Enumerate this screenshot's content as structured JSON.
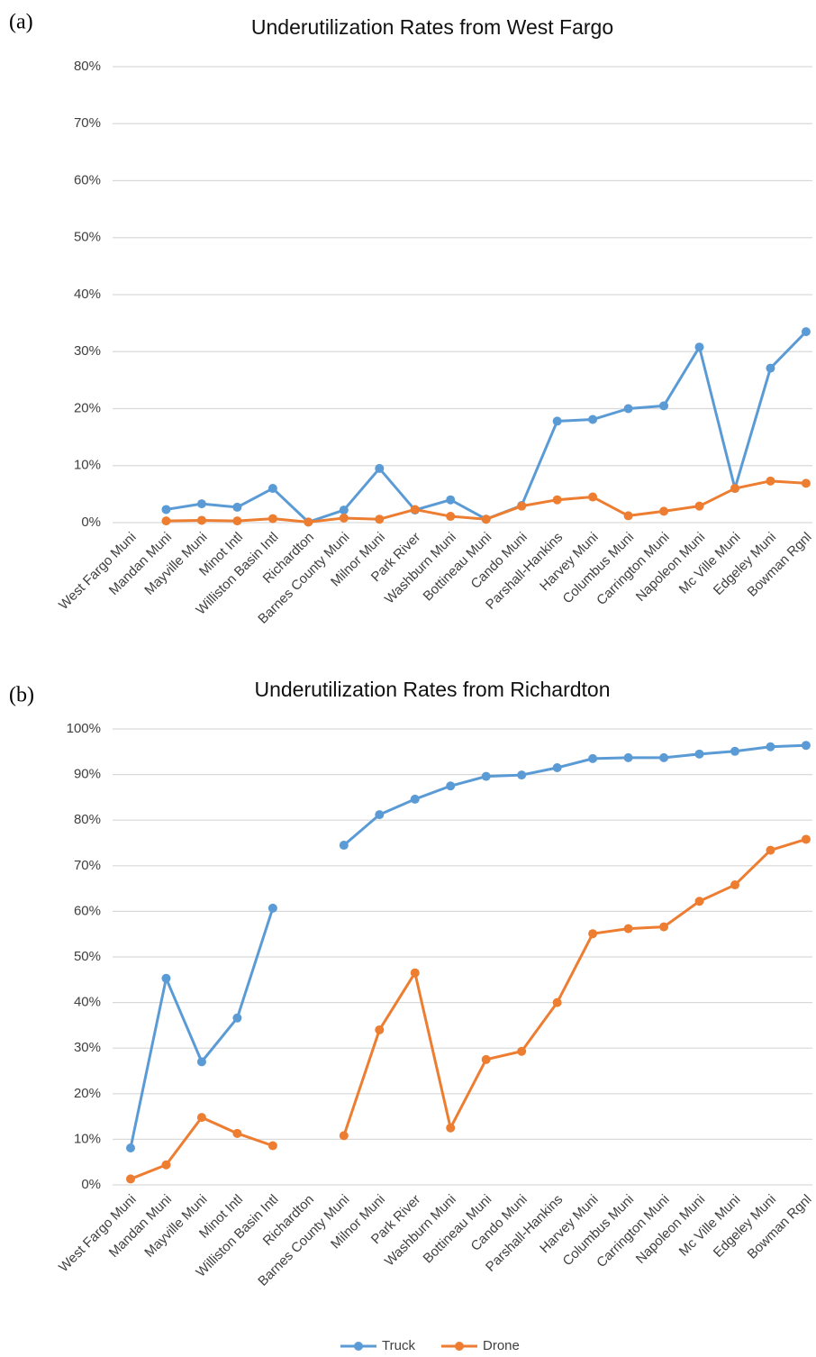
{
  "chart_data": [
    {
      "type": "line",
      "panel": "(a)",
      "title": "Underutilization Rates from West Fargo",
      "categories": [
        "West Fargo Muni",
        "Mandan Muni",
        "Mayville Muni",
        "Minot Intl",
        "Williston Basin Intl",
        "Richardton",
        "Barnes County Muni",
        "Milnor Muni",
        "Park River",
        "Washburn Muni",
        "Bottineau Muni",
        "Cando Muni",
        "Parshall-Hankins",
        "Harvey Muni",
        "Columbus Muni",
        "Carrington Muni",
        "Napoleon Muni",
        "Mc Ville Muni",
        "Edgeley Muni",
        "Bowman Rgnl"
      ],
      "series": [
        {
          "name": "Truck",
          "color": "#5b9bd5",
          "values": [
            null,
            2.3,
            3.3,
            2.7,
            6.0,
            0.1,
            2.2,
            9.5,
            2.2,
            4.0,
            0.6,
            3.0,
            17.8,
            18.1,
            20.0,
            20.5,
            30.8,
            6.0,
            27.1,
            33.5
          ]
        },
        {
          "name": "Drone",
          "color": "#ed7d31",
          "values": [
            null,
            0.3,
            0.4,
            0.3,
            0.7,
            0.1,
            0.8,
            0.6,
            2.3,
            1.1,
            0.6,
            2.9,
            4.0,
            4.5,
            1.2,
            2.0,
            2.9,
            6.0,
            7.3,
            6.9
          ]
        }
      ],
      "ylim": [
        0,
        80
      ],
      "yticks": [
        {
          "value": 0,
          "label": "0%"
        },
        {
          "value": 10,
          "label": "10%"
        },
        {
          "value": 20,
          "label": "20%"
        },
        {
          "value": 30,
          "label": "30%"
        },
        {
          "value": 40,
          "label": "40%"
        },
        {
          "value": 50,
          "label": "50%"
        },
        {
          "value": 60,
          "label": "60%"
        },
        {
          "value": 70,
          "label": "70%"
        },
        {
          "value": 80,
          "label": "80%"
        }
      ],
      "grid": true
    },
    {
      "type": "line",
      "panel": "(b)",
      "title": "Underutilization Rates from Richardton",
      "categories": [
        "West Fargo Muni",
        "Mandan Muni",
        "Mayville Muni",
        "Minot Intl",
        "Williston Basin Intl",
        "Richardton",
        "Barnes County Muni",
        "Milnor Muni",
        "Park River",
        "Washburn Muni",
        "Bottineau Muni",
        "Cando Muni",
        "Parshall-Hankins",
        "Harvey Muni",
        "Columbus Muni",
        "Carrington Muni",
        "Napoleon Muni",
        "Mc Ville Muni",
        "Edgeley Muni",
        "Bowman Rgnl"
      ],
      "series": [
        {
          "name": "Truck",
          "color": "#5b9bd5",
          "values": [
            8.1,
            45.3,
            27.0,
            36.6,
            60.7,
            null,
            74.5,
            81.2,
            84.6,
            87.5,
            89.6,
            89.9,
            91.5,
            93.5,
            93.7,
            93.7,
            94.5,
            95.1,
            96.1,
            96.4
          ]
        },
        {
          "name": "Drone",
          "color": "#ed7d31",
          "values": [
            1.3,
            4.4,
            14.8,
            11.3,
            8.6,
            null,
            10.8,
            34.0,
            46.5,
            12.5,
            27.5,
            29.3,
            40.0,
            55.1,
            56.2,
            56.6,
            62.2,
            65.8,
            73.4,
            75.8
          ]
        }
      ],
      "ylim": [
        0,
        100
      ],
      "yticks": [
        {
          "value": 0,
          "label": "0%"
        },
        {
          "value": 10,
          "label": "10%"
        },
        {
          "value": 20,
          "label": "20%"
        },
        {
          "value": 30,
          "label": "30%"
        },
        {
          "value": 40,
          "label": "40%"
        },
        {
          "value": 50,
          "label": "50%"
        },
        {
          "value": 60,
          "label": "60%"
        },
        {
          "value": 70,
          "label": "70%"
        },
        {
          "value": 80,
          "label": "80%"
        },
        {
          "value": 90,
          "label": "90%"
        },
        {
          "value": 100,
          "label": "100%"
        }
      ],
      "grid": true,
      "legend": "bottom"
    }
  ]
}
